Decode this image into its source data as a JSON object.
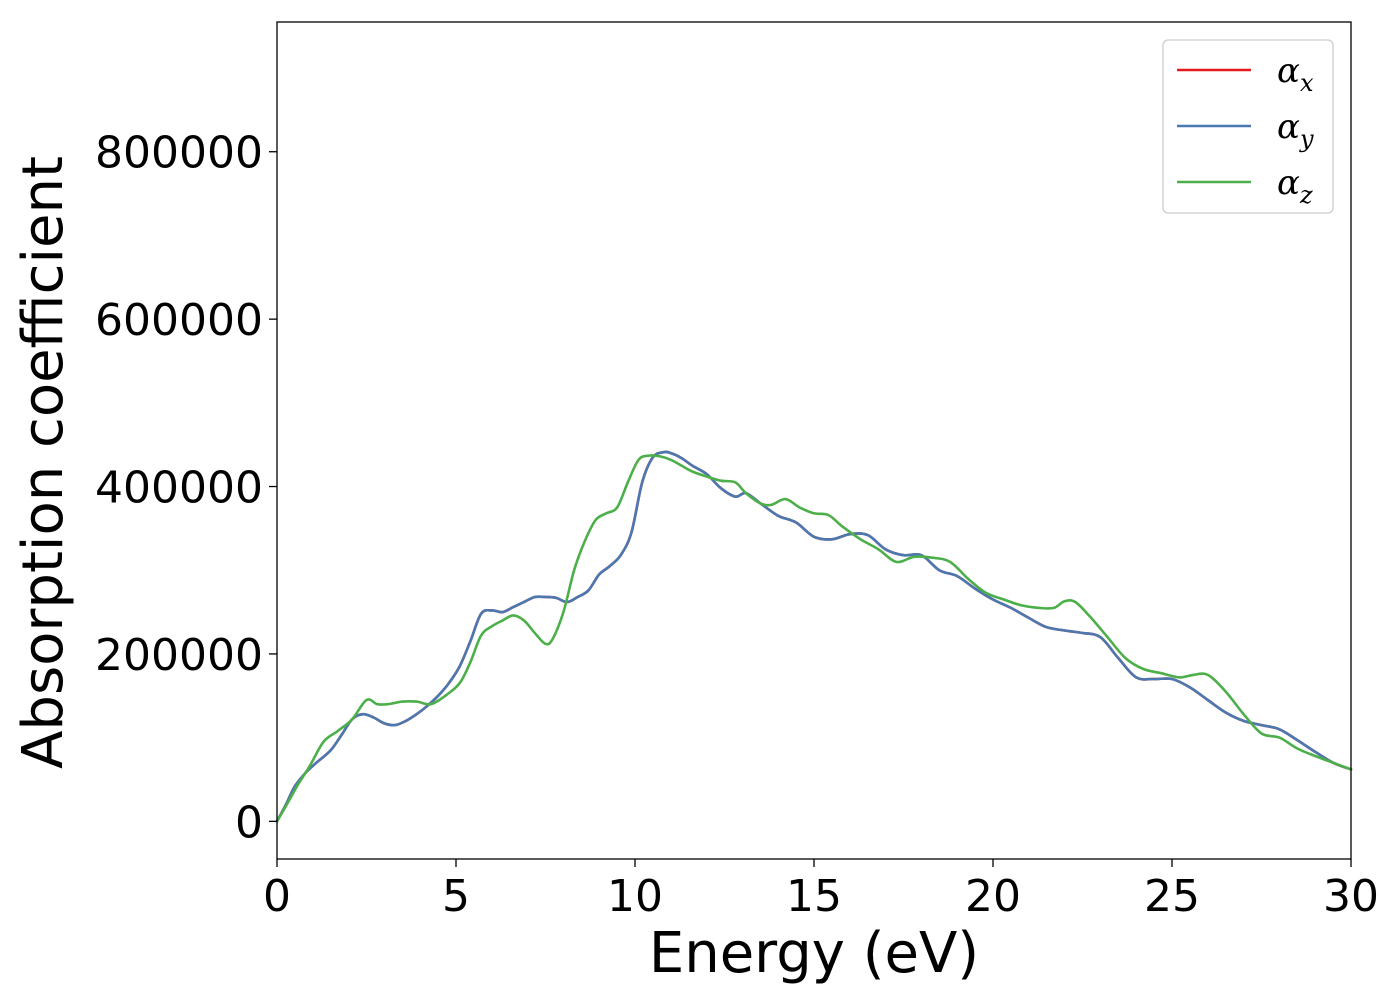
{
  "chart_data": {
    "type": "line",
    "title": "",
    "xlabel": "Energy (eV)",
    "ylabel": "Absorption coefficient",
    "xlim": [
      0,
      30
    ],
    "ylim": [
      -45000,
      955000
    ],
    "xticks": [
      0,
      5,
      10,
      15,
      20,
      25,
      30
    ],
    "yticks": [
      0,
      200000,
      400000,
      600000,
      800000
    ],
    "grid": false,
    "legend_position": "top-right",
    "series": [
      {
        "name": "α_x",
        "label_base": "α",
        "label_sub": "x",
        "color": "#e41a1c",
        "x": [
          0,
          0.25,
          0.5,
          0.8,
          1.1,
          1.5,
          1.8,
          2.1,
          2.4,
          2.7,
          3.0,
          3.3,
          3.6,
          3.9,
          4.2,
          4.5,
          4.8,
          5.1,
          5.4,
          5.7,
          6.0,
          6.3,
          6.6,
          6.9,
          7.2,
          7.5,
          7.8,
          8.1,
          8.4,
          8.7,
          9.0,
          9.3,
          9.6,
          9.9,
          10.2,
          10.5,
          10.8,
          11.0,
          11.3,
          11.6,
          12.0,
          12.4,
          12.8,
          13.1,
          13.5,
          14.0,
          14.5,
          15.0,
          15.5,
          16.0,
          16.5,
          17.0,
          17.5,
          18.0,
          18.5,
          19.0,
          19.5,
          20.0,
          20.5,
          21.0,
          21.5,
          22.0,
          22.5,
          23.0,
          23.5,
          24.0,
          24.5,
          25.0,
          25.5,
          26.0,
          26.5,
          27.0,
          27.5,
          28.0,
          28.5,
          29.0,
          29.5,
          30.0
        ],
        "values": [
          0,
          20000,
          42000,
          58000,
          70000,
          85000,
          103000,
          122000,
          128000,
          124000,
          117000,
          115000,
          120000,
          128000,
          138000,
          150000,
          165000,
          185000,
          215000,
          248000,
          252000,
          250000,
          256000,
          262000,
          268000,
          268000,
          267000,
          262000,
          268000,
          276000,
          295000,
          305000,
          318000,
          345000,
          405000,
          435000,
          441000,
          440000,
          434000,
          425000,
          415000,
          398000,
          388000,
          392000,
          380000,
          365000,
          357000,
          340000,
          337000,
          343000,
          342000,
          325000,
          318000,
          318000,
          300000,
          293000,
          278000,
          265000,
          255000,
          243000,
          232000,
          228000,
          225000,
          220000,
          195000,
          172000,
          170000,
          170000,
          160000,
          145000,
          130000,
          120000,
          115000,
          110000,
          97000,
          83000,
          70000,
          62000
        ]
      },
      {
        "name": "α_y",
        "label_base": "α",
        "label_sub": "y",
        "color": "#4a78b0",
        "x": [
          0,
          0.25,
          0.5,
          0.8,
          1.1,
          1.5,
          1.8,
          2.1,
          2.4,
          2.7,
          3.0,
          3.3,
          3.6,
          3.9,
          4.2,
          4.5,
          4.8,
          5.1,
          5.4,
          5.7,
          6.0,
          6.3,
          6.6,
          6.9,
          7.2,
          7.5,
          7.8,
          8.1,
          8.4,
          8.7,
          9.0,
          9.3,
          9.6,
          9.9,
          10.2,
          10.5,
          10.8,
          11.0,
          11.3,
          11.6,
          12.0,
          12.4,
          12.8,
          13.1,
          13.5,
          14.0,
          14.5,
          15.0,
          15.5,
          16.0,
          16.5,
          17.0,
          17.5,
          18.0,
          18.5,
          19.0,
          19.5,
          20.0,
          20.5,
          21.0,
          21.5,
          22.0,
          22.5,
          23.0,
          23.5,
          24.0,
          24.5,
          25.0,
          25.5,
          26.0,
          26.5,
          27.0,
          27.5,
          28.0,
          28.5,
          29.0,
          29.5,
          30.0
        ],
        "values": [
          0,
          20000,
          42000,
          58000,
          70000,
          85000,
          103000,
          122000,
          128000,
          124000,
          117000,
          115000,
          120000,
          128000,
          138000,
          150000,
          165000,
          185000,
          215000,
          248000,
          252000,
          250000,
          256000,
          262000,
          268000,
          268000,
          267000,
          262000,
          268000,
          276000,
          295000,
          305000,
          318000,
          345000,
          405000,
          435000,
          441000,
          440000,
          434000,
          425000,
          415000,
          398000,
          388000,
          392000,
          380000,
          365000,
          357000,
          340000,
          337000,
          343000,
          342000,
          325000,
          318000,
          318000,
          300000,
          293000,
          278000,
          265000,
          255000,
          243000,
          232000,
          228000,
          225000,
          220000,
          195000,
          172000,
          170000,
          170000,
          160000,
          145000,
          130000,
          120000,
          115000,
          110000,
          97000,
          83000,
          70000,
          62000
        ]
      },
      {
        "name": "α_z",
        "label_base": "α",
        "label_sub": "z",
        "color": "#4daf4a",
        "x": [
          0,
          0.3,
          0.6,
          0.9,
          1.3,
          1.7,
          2.1,
          2.5,
          2.8,
          3.1,
          3.5,
          3.9,
          4.3,
          4.7,
          5.1,
          5.4,
          5.7,
          6.0,
          6.3,
          6.6,
          6.9,
          7.2,
          7.5,
          7.7,
          8.0,
          8.3,
          8.6,
          8.9,
          9.2,
          9.5,
          9.8,
          10.1,
          10.4,
          10.7,
          11.0,
          11.3,
          11.6,
          12.0,
          12.4,
          12.8,
          13.1,
          13.5,
          13.8,
          14.2,
          14.6,
          15.0,
          15.4,
          15.8,
          16.3,
          16.8,
          17.3,
          17.8,
          18.3,
          18.8,
          19.3,
          19.8,
          20.3,
          20.8,
          21.3,
          21.7,
          22.0,
          22.3,
          22.7,
          23.2,
          23.7,
          24.2,
          24.7,
          25.2,
          25.6,
          26.0,
          26.5,
          27.0,
          27.5,
          28.0,
          28.5,
          29.0,
          29.5,
          30.0
        ],
        "values": [
          0,
          22000,
          45000,
          65000,
          95000,
          108000,
          122000,
          145000,
          140000,
          140000,
          143000,
          143000,
          140000,
          150000,
          165000,
          190000,
          222000,
          233000,
          240000,
          246000,
          240000,
          225000,
          212000,
          218000,
          250000,
          300000,
          335000,
          360000,
          368000,
          375000,
          405000,
          432000,
          437000,
          436000,
          432000,
          425000,
          418000,
          412000,
          407000,
          405000,
          392000,
          380000,
          378000,
          385000,
          375000,
          368000,
          366000,
          352000,
          337000,
          325000,
          310000,
          316000,
          315000,
          310000,
          290000,
          273000,
          265000,
          258000,
          255000,
          255000,
          263000,
          262000,
          245000,
          220000,
          195000,
          182000,
          177000,
          172000,
          175000,
          175000,
          155000,
          128000,
          105000,
          100000,
          87000,
          78000,
          70000,
          62000
        ]
      }
    ]
  }
}
